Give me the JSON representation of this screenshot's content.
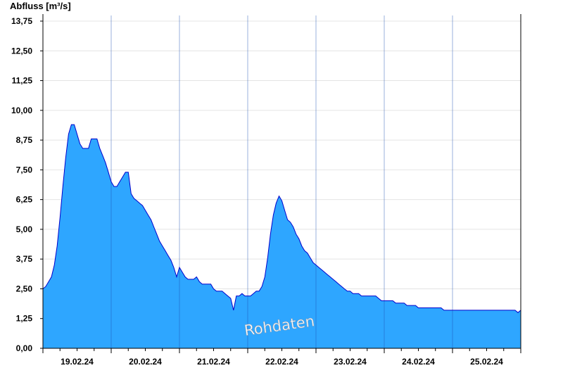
{
  "chart_data": {
    "type": "area",
    "title": "",
    "ylabel": "Abfluss [m³/s]",
    "xlabel": "",
    "watermark": "Rohdaten",
    "ylim": [
      0,
      13.75
    ],
    "xlim": [
      0,
      168
    ],
    "yticks": [
      {
        "v": 0,
        "label": "0,00"
      },
      {
        "v": 1.25,
        "label": "1,25"
      },
      {
        "v": 2.5,
        "label": "2,50"
      },
      {
        "v": 3.75,
        "label": "3,75"
      },
      {
        "v": 5,
        "label": "5,00"
      },
      {
        "v": 6.25,
        "label": "6,25"
      },
      {
        "v": 7.5,
        "label": "7,50"
      },
      {
        "v": 8.75,
        "label": "8,75"
      },
      {
        "v": 10,
        "label": "10,00"
      },
      {
        "v": 11.25,
        "label": "11,25"
      },
      {
        "v": 12.5,
        "label": "12,50"
      },
      {
        "v": 13.75,
        "label": "13,75"
      }
    ],
    "days": [
      {
        "x": 12,
        "label": "19.02.24"
      },
      {
        "x": 36,
        "label": "20.02.24"
      },
      {
        "x": 60,
        "label": "21.02.24"
      },
      {
        "x": 84,
        "label": "22.02.24"
      },
      {
        "x": 108,
        "label": "23.02.24"
      },
      {
        "x": 132,
        "label": "24.02.24"
      },
      {
        "x": 156,
        "label": "25.02.24"
      }
    ],
    "midnights": [
      24,
      48,
      72,
      96,
      120,
      144
    ],
    "grid": true,
    "fill_color": "#2ea6ff",
    "line_color": "#0000cc",
    "x": [
      0,
      1,
      2,
      3,
      4,
      5,
      6,
      7,
      8,
      9,
      10,
      11,
      12,
      13,
      14,
      15,
      16,
      17,
      18,
      19,
      20,
      21,
      22,
      23,
      24,
      25,
      26,
      27,
      28,
      29,
      30,
      31,
      32,
      33,
      34,
      35,
      36,
      37,
      38,
      39,
      40,
      41,
      42,
      43,
      44,
      45,
      46,
      47,
      48,
      49,
      50,
      51,
      52,
      53,
      54,
      55,
      56,
      57,
      58,
      59,
      60,
      61,
      62,
      63,
      64,
      65,
      66,
      67,
      68,
      69,
      70,
      71,
      72,
      73,
      74,
      75,
      76,
      77,
      78,
      79,
      80,
      81,
      82,
      83,
      84,
      85,
      86,
      87,
      88,
      89,
      90,
      91,
      92,
      93,
      94,
      95,
      96,
      97,
      98,
      99,
      100,
      101,
      102,
      103,
      104,
      105,
      106,
      107,
      108,
      109,
      110,
      111,
      112,
      113,
      114,
      115,
      116,
      117,
      118,
      119,
      120,
      121,
      122,
      123,
      124,
      125,
      126,
      127,
      128,
      129,
      130,
      131,
      132,
      133,
      134,
      135,
      136,
      137,
      138,
      139,
      140,
      141,
      142,
      143,
      144,
      145,
      146,
      147,
      148,
      149,
      150,
      151,
      152,
      153,
      154,
      155,
      156,
      157,
      158,
      159,
      160,
      161,
      162,
      163,
      164,
      165,
      166,
      167,
      168
    ],
    "y": [
      2.5,
      2.6,
      2.8,
      3.0,
      3.5,
      4.3,
      5.5,
      6.8,
      8.0,
      9.0,
      9.4,
      9.4,
      9.0,
      8.6,
      8.4,
      8.4,
      8.4,
      8.8,
      8.8,
      8.8,
      8.4,
      8.1,
      7.8,
      7.4,
      7.0,
      6.8,
      6.8,
      7.0,
      7.2,
      7.4,
      7.4,
      6.5,
      6.3,
      6.2,
      6.1,
      6.0,
      5.8,
      5.6,
      5.4,
      5.1,
      4.8,
      4.5,
      4.3,
      4.1,
      3.9,
      3.7,
      3.4,
      3.0,
      3.4,
      3.2,
      3.0,
      2.9,
      2.9,
      2.9,
      3.0,
      2.8,
      2.7,
      2.7,
      2.7,
      2.7,
      2.5,
      2.4,
      2.4,
      2.4,
      2.3,
      2.2,
      2.1,
      1.6,
      2.2,
      2.2,
      2.3,
      2.2,
      2.2,
      2.2,
      2.3,
      2.4,
      2.4,
      2.6,
      3.0,
      3.8,
      4.8,
      5.6,
      6.1,
      6.4,
      6.2,
      5.8,
      5.4,
      5.3,
      5.1,
      4.8,
      4.6,
      4.3,
      4.1,
      4.0,
      3.8,
      3.6,
      3.5,
      3.4,
      3.3,
      3.2,
      3.1,
      3.0,
      2.9,
      2.8,
      2.7,
      2.6,
      2.5,
      2.4,
      2.4,
      2.3,
      2.3,
      2.3,
      2.2,
      2.2,
      2.2,
      2.2,
      2.2,
      2.2,
      2.1,
      2.0,
      2.0,
      2.0,
      2.0,
      2.0,
      1.9,
      1.9,
      1.9,
      1.9,
      1.8,
      1.8,
      1.8,
      1.8,
      1.7,
      1.7,
      1.7,
      1.7,
      1.7,
      1.7,
      1.7,
      1.7,
      1.7,
      1.6,
      1.6,
      1.6,
      1.6,
      1.6,
      1.6,
      1.6,
      1.6,
      1.6,
      1.6,
      1.6,
      1.6,
      1.6,
      1.6,
      1.6,
      1.6,
      1.6,
      1.6,
      1.6,
      1.6,
      1.6,
      1.6,
      1.6,
      1.6,
      1.6,
      1.6,
      1.5,
      1.6
    ]
  }
}
